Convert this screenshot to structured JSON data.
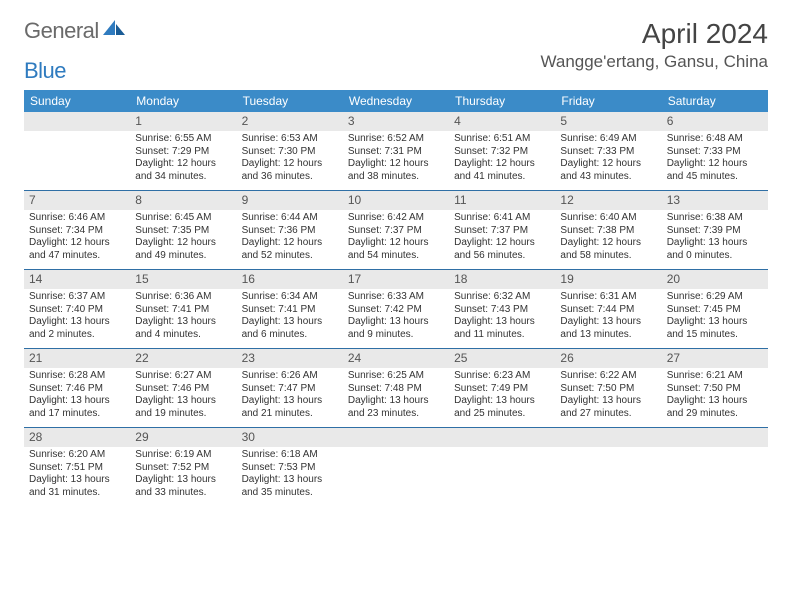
{
  "brand": {
    "part1": "General",
    "part2": "Blue"
  },
  "title": "April 2024",
  "location": "Wangge'ertang, Gansu, China",
  "colors": {
    "header_bg": "#3b8bc8",
    "divider": "#2f6fa5",
    "daynum_bg": "#e9e9e9",
    "logo_gray": "#6a6a6a",
    "logo_blue": "#2f7bbf"
  },
  "dow": [
    "Sunday",
    "Monday",
    "Tuesday",
    "Wednesday",
    "Thursday",
    "Friday",
    "Saturday"
  ],
  "weeks": [
    [
      null,
      {
        "n": "1",
        "sr": "Sunrise: 6:55 AM",
        "ss": "Sunset: 7:29 PM",
        "d1": "Daylight: 12 hours",
        "d2": "and 34 minutes."
      },
      {
        "n": "2",
        "sr": "Sunrise: 6:53 AM",
        "ss": "Sunset: 7:30 PM",
        "d1": "Daylight: 12 hours",
        "d2": "and 36 minutes."
      },
      {
        "n": "3",
        "sr": "Sunrise: 6:52 AM",
        "ss": "Sunset: 7:31 PM",
        "d1": "Daylight: 12 hours",
        "d2": "and 38 minutes."
      },
      {
        "n": "4",
        "sr": "Sunrise: 6:51 AM",
        "ss": "Sunset: 7:32 PM",
        "d1": "Daylight: 12 hours",
        "d2": "and 41 minutes."
      },
      {
        "n": "5",
        "sr": "Sunrise: 6:49 AM",
        "ss": "Sunset: 7:33 PM",
        "d1": "Daylight: 12 hours",
        "d2": "and 43 minutes."
      },
      {
        "n": "6",
        "sr": "Sunrise: 6:48 AM",
        "ss": "Sunset: 7:33 PM",
        "d1": "Daylight: 12 hours",
        "d2": "and 45 minutes."
      }
    ],
    [
      {
        "n": "7",
        "sr": "Sunrise: 6:46 AM",
        "ss": "Sunset: 7:34 PM",
        "d1": "Daylight: 12 hours",
        "d2": "and 47 minutes."
      },
      {
        "n": "8",
        "sr": "Sunrise: 6:45 AM",
        "ss": "Sunset: 7:35 PM",
        "d1": "Daylight: 12 hours",
        "d2": "and 49 minutes."
      },
      {
        "n": "9",
        "sr": "Sunrise: 6:44 AM",
        "ss": "Sunset: 7:36 PM",
        "d1": "Daylight: 12 hours",
        "d2": "and 52 minutes."
      },
      {
        "n": "10",
        "sr": "Sunrise: 6:42 AM",
        "ss": "Sunset: 7:37 PM",
        "d1": "Daylight: 12 hours",
        "d2": "and 54 minutes."
      },
      {
        "n": "11",
        "sr": "Sunrise: 6:41 AM",
        "ss": "Sunset: 7:37 PM",
        "d1": "Daylight: 12 hours",
        "d2": "and 56 minutes."
      },
      {
        "n": "12",
        "sr": "Sunrise: 6:40 AM",
        "ss": "Sunset: 7:38 PM",
        "d1": "Daylight: 12 hours",
        "d2": "and 58 minutes."
      },
      {
        "n": "13",
        "sr": "Sunrise: 6:38 AM",
        "ss": "Sunset: 7:39 PM",
        "d1": "Daylight: 13 hours",
        "d2": "and 0 minutes."
      }
    ],
    [
      {
        "n": "14",
        "sr": "Sunrise: 6:37 AM",
        "ss": "Sunset: 7:40 PM",
        "d1": "Daylight: 13 hours",
        "d2": "and 2 minutes."
      },
      {
        "n": "15",
        "sr": "Sunrise: 6:36 AM",
        "ss": "Sunset: 7:41 PM",
        "d1": "Daylight: 13 hours",
        "d2": "and 4 minutes."
      },
      {
        "n": "16",
        "sr": "Sunrise: 6:34 AM",
        "ss": "Sunset: 7:41 PM",
        "d1": "Daylight: 13 hours",
        "d2": "and 6 minutes."
      },
      {
        "n": "17",
        "sr": "Sunrise: 6:33 AM",
        "ss": "Sunset: 7:42 PM",
        "d1": "Daylight: 13 hours",
        "d2": "and 9 minutes."
      },
      {
        "n": "18",
        "sr": "Sunrise: 6:32 AM",
        "ss": "Sunset: 7:43 PM",
        "d1": "Daylight: 13 hours",
        "d2": "and 11 minutes."
      },
      {
        "n": "19",
        "sr": "Sunrise: 6:31 AM",
        "ss": "Sunset: 7:44 PM",
        "d1": "Daylight: 13 hours",
        "d2": "and 13 minutes."
      },
      {
        "n": "20",
        "sr": "Sunrise: 6:29 AM",
        "ss": "Sunset: 7:45 PM",
        "d1": "Daylight: 13 hours",
        "d2": "and 15 minutes."
      }
    ],
    [
      {
        "n": "21",
        "sr": "Sunrise: 6:28 AM",
        "ss": "Sunset: 7:46 PM",
        "d1": "Daylight: 13 hours",
        "d2": "and 17 minutes."
      },
      {
        "n": "22",
        "sr": "Sunrise: 6:27 AM",
        "ss": "Sunset: 7:46 PM",
        "d1": "Daylight: 13 hours",
        "d2": "and 19 minutes."
      },
      {
        "n": "23",
        "sr": "Sunrise: 6:26 AM",
        "ss": "Sunset: 7:47 PM",
        "d1": "Daylight: 13 hours",
        "d2": "and 21 minutes."
      },
      {
        "n": "24",
        "sr": "Sunrise: 6:25 AM",
        "ss": "Sunset: 7:48 PM",
        "d1": "Daylight: 13 hours",
        "d2": "and 23 minutes."
      },
      {
        "n": "25",
        "sr": "Sunrise: 6:23 AM",
        "ss": "Sunset: 7:49 PM",
        "d1": "Daylight: 13 hours",
        "d2": "and 25 minutes."
      },
      {
        "n": "26",
        "sr": "Sunrise: 6:22 AM",
        "ss": "Sunset: 7:50 PM",
        "d1": "Daylight: 13 hours",
        "d2": "and 27 minutes."
      },
      {
        "n": "27",
        "sr": "Sunrise: 6:21 AM",
        "ss": "Sunset: 7:50 PM",
        "d1": "Daylight: 13 hours",
        "d2": "and 29 minutes."
      }
    ],
    [
      {
        "n": "28",
        "sr": "Sunrise: 6:20 AM",
        "ss": "Sunset: 7:51 PM",
        "d1": "Daylight: 13 hours",
        "d2": "and 31 minutes."
      },
      {
        "n": "29",
        "sr": "Sunrise: 6:19 AM",
        "ss": "Sunset: 7:52 PM",
        "d1": "Daylight: 13 hours",
        "d2": "and 33 minutes."
      },
      {
        "n": "30",
        "sr": "Sunrise: 6:18 AM",
        "ss": "Sunset: 7:53 PM",
        "d1": "Daylight: 13 hours",
        "d2": "and 35 minutes."
      },
      null,
      null,
      null,
      null
    ]
  ]
}
